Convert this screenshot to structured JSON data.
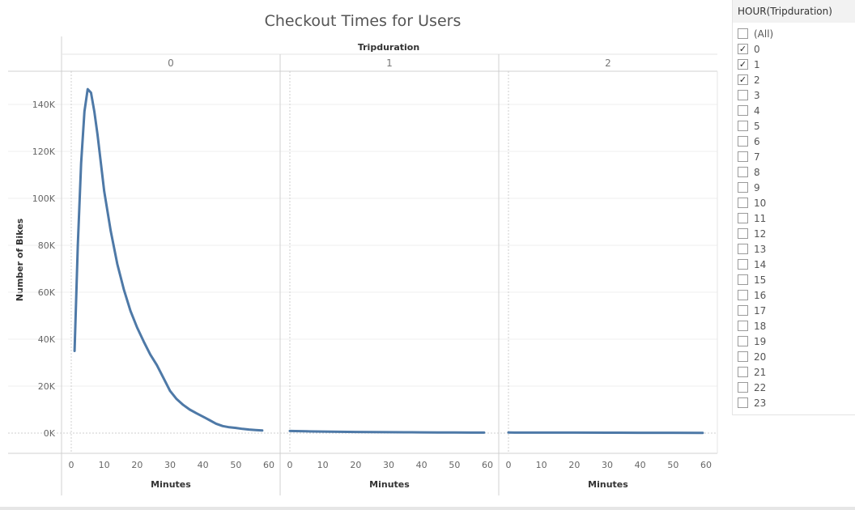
{
  "chart_data": {
    "type": "line",
    "title": "Checkout Times for Users",
    "column_header": "Tripduration",
    "ylabel": "Number of Bikes",
    "xlabel": "Minutes",
    "ylim": [
      0,
      150000
    ],
    "yticks": [
      0,
      20000,
      40000,
      60000,
      80000,
      100000,
      120000,
      140000
    ],
    "ytick_labels": [
      "0K",
      "20K",
      "40K",
      "60K",
      "80K",
      "100K",
      "120K",
      "140K"
    ],
    "xlim": [
      0,
      60
    ],
    "xticks": [
      0,
      10,
      20,
      30,
      40,
      50,
      60
    ],
    "line_color": "#4e79a7",
    "grid": true,
    "panels": [
      {
        "label": "0",
        "x": [
          1,
          2,
          3,
          4,
          5,
          6,
          7,
          8,
          9,
          10,
          12,
          14,
          16,
          18,
          20,
          22,
          24,
          26,
          28,
          30,
          32,
          34,
          36,
          38,
          40,
          42,
          44,
          46,
          48,
          50,
          52,
          54,
          56,
          58
        ],
        "y": [
          35000,
          80000,
          115000,
          137000,
          146500,
          145000,
          137000,
          127000,
          115000,
          103000,
          86000,
          72000,
          61000,
          52000,
          45000,
          39000,
          33500,
          29000,
          23500,
          18000,
          14500,
          12000,
          10000,
          8500,
          7000,
          5500,
          4000,
          3000,
          2500,
          2200,
          1800,
          1500,
          1300,
          1100
        ]
      },
      {
        "label": "1",
        "x": [
          0,
          5,
          10,
          15,
          20,
          25,
          30,
          35,
          40,
          45,
          50,
          55,
          59
        ],
        "y": [
          900,
          750,
          650,
          550,
          480,
          420,
          380,
          340,
          300,
          270,
          240,
          210,
          200
        ]
      },
      {
        "label": "2",
        "x": [
          0,
          10,
          20,
          30,
          40,
          50,
          59
        ],
        "y": [
          250,
          220,
          190,
          170,
          150,
          130,
          120
        ]
      }
    ]
  },
  "filter": {
    "title": "HOUR(Tripduration)",
    "items": [
      {
        "label": "(All)",
        "checked": false
      },
      {
        "label": "0",
        "checked": true
      },
      {
        "label": "1",
        "checked": true
      },
      {
        "label": "2",
        "checked": true
      },
      {
        "label": "3",
        "checked": false
      },
      {
        "label": "4",
        "checked": false
      },
      {
        "label": "5",
        "checked": false
      },
      {
        "label": "6",
        "checked": false
      },
      {
        "label": "7",
        "checked": false
      },
      {
        "label": "8",
        "checked": false
      },
      {
        "label": "9",
        "checked": false
      },
      {
        "label": "10",
        "checked": false
      },
      {
        "label": "11",
        "checked": false
      },
      {
        "label": "12",
        "checked": false
      },
      {
        "label": "13",
        "checked": false
      },
      {
        "label": "14",
        "checked": false
      },
      {
        "label": "15",
        "checked": false
      },
      {
        "label": "16",
        "checked": false
      },
      {
        "label": "17",
        "checked": false
      },
      {
        "label": "18",
        "checked": false
      },
      {
        "label": "19",
        "checked": false
      },
      {
        "label": "20",
        "checked": false
      },
      {
        "label": "21",
        "checked": false
      },
      {
        "label": "22",
        "checked": false
      },
      {
        "label": "23",
        "checked": false
      }
    ]
  }
}
